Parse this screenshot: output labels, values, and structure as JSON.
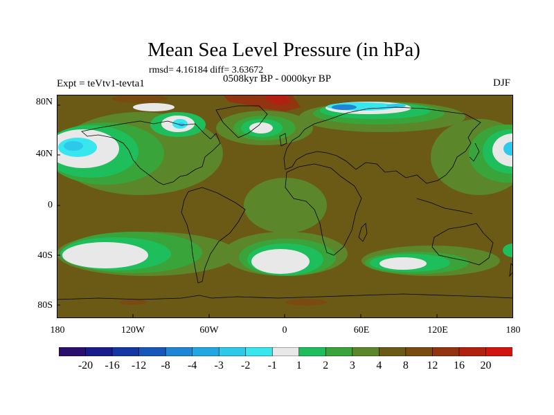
{
  "title": "Mean Sea Level Pressure (in hPa)",
  "stats_line": "rmsd= 4.16184 diff= 3.63672",
  "period_line": "0508kyr BP - 0000kyr BP",
  "experiment_line": "Expt = teVtv1-tevta1",
  "season": "DJF",
  "lat_axis": [
    "80N",
    "40N",
    "0",
    "40S",
    "80S"
  ],
  "lon_axis": [
    "180",
    "120W",
    "60W",
    "0",
    "60E",
    "120E",
    "180"
  ],
  "colorbar": {
    "labels": [
      "-20",
      "-16",
      "-12",
      "-8",
      "-4",
      "-3",
      "-2",
      "-1",
      "1",
      "2",
      "3",
      "4",
      "8",
      "12",
      "16",
      "20"
    ],
    "colors": [
      "#2a0f6e",
      "#1a1c8c",
      "#1437a3",
      "#1757b9",
      "#2185d6",
      "#21a8e0",
      "#2dc9ea",
      "#38e6ee",
      "#e8e8e8",
      "#1fbe5c",
      "#38a43a",
      "#5b862a",
      "#6b5a16",
      "#7a4b10",
      "#92340f",
      "#b2200f",
      "#d2140f"
    ]
  },
  "chart_data": {
    "type": "heatmap",
    "title": "Mean Sea Level Pressure (in hPa)",
    "variable": "mean sea level pressure difference",
    "units": "hPa",
    "x_range": [
      -180,
      180
    ],
    "y_range": [
      -90,
      90
    ],
    "levels": [
      -20,
      -16,
      -12,
      -8,
      -4,
      -3,
      -2,
      -1,
      1,
      2,
      3,
      4,
      8,
      12,
      16,
      20
    ],
    "dominant_level": "4 to 8",
    "features": [
      {
        "region": "North Pacific",
        "range": "-2 to 1"
      },
      {
        "region": "North Atlantic",
        "range": "-1 to 1"
      },
      {
        "region": "Arctic Siberia",
        "range": "-3 to 1"
      },
      {
        "region": "Canadian Arctic",
        "range": "-2 to 1"
      },
      {
        "region": "South Pacific",
        "range": "-1 to 1"
      },
      {
        "region": "South Atlantic",
        "range": "-1 to 1"
      },
      {
        "region": "South Indian Ocean",
        "range": "-1 to 1"
      },
      {
        "region": "Greenland Sea",
        "range": "12 to 20"
      }
    ]
  }
}
